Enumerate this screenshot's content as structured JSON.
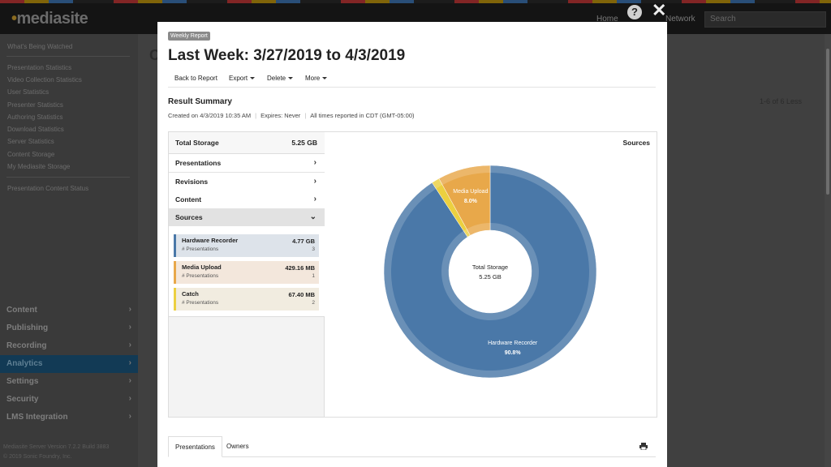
{
  "app": {
    "logo": "mediasite",
    "top_nav": [
      "Home",
      "Network"
    ],
    "search_placeholder": "Search"
  },
  "sidebar": {
    "links": [
      "What's Being Watched",
      "Presentation Statistics",
      "Video Collection Statistics",
      "User Statistics",
      "Presenter Statistics",
      "Authoring Statistics",
      "Download Statistics",
      "Server Statistics",
      "Content Storage",
      "My Mediasite Storage",
      "Presentation Content Status"
    ],
    "categories": [
      "Content",
      "Publishing",
      "Recording",
      "Analytics",
      "Settings",
      "Security",
      "LMS Integration"
    ],
    "footer": [
      "Mediasite Server Version 7.2.2 Build 3883",
      "© 2019 Sonic Foundry, Inc."
    ],
    "background_heading": "C",
    "background_pager": "1-6 of 6   Less"
  },
  "modal": {
    "badge": "Weekly Report",
    "title": "Last Week: 3/27/2019 to 4/3/2019",
    "toolbar": {
      "back": "Back to Report",
      "export": "Export",
      "delete": "Delete",
      "more": "More"
    },
    "result_title": "Result Summary",
    "meta": {
      "created": "Created on 4/3/2019 10:35 AM",
      "expires": "Expires: Never",
      "times": "All times reported in CDT (GMT-05:00)"
    },
    "summary": {
      "total_label": "Total Storage",
      "total_value": "5.25 GB",
      "nav": [
        "Presentations",
        "Revisions",
        "Content",
        "Sources"
      ]
    },
    "sources": [
      {
        "name": "Hardware Recorder",
        "amount": "4.77 GB",
        "sub": "# Presentations",
        "count": "3",
        "color": "#4a78a8",
        "bg": "#dde3ea"
      },
      {
        "name": "Media Upload",
        "amount": "429.16 MB",
        "sub": "# Presentations",
        "count": "1",
        "color": "#e8a84a",
        "bg": "#f3e7dc"
      },
      {
        "name": "Catch",
        "amount": "67.40 MB",
        "sub": "# Presentations",
        "count": "2",
        "color": "#ecd040",
        "bg": "#f1ece0"
      }
    ],
    "chart_title": "Sources",
    "tabs": [
      "Presentations",
      "Owners"
    ]
  },
  "chart_data": {
    "type": "pie",
    "title": "Sources",
    "center_label": "Total Storage",
    "center_value": "5.25 GB",
    "slices": [
      {
        "label": "Hardware Recorder",
        "value": 90.8,
        "display": "90.8%",
        "color": "#4a78a8"
      },
      {
        "label": "Catch",
        "value": 1.2,
        "display": "",
        "color": "#ecd040"
      },
      {
        "label": "Media Upload",
        "value": 8.0,
        "display": "8.0%",
        "color": "#e8a84a"
      }
    ]
  }
}
